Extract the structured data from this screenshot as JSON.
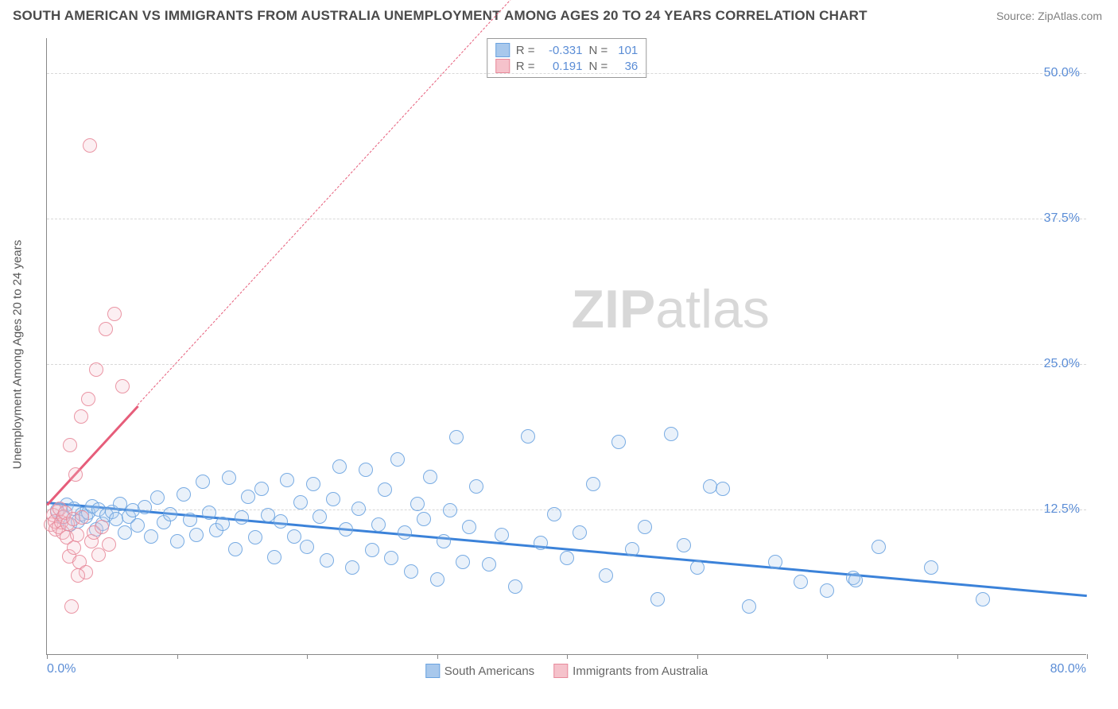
{
  "title": "SOUTH AMERICAN VS IMMIGRANTS FROM AUSTRALIA UNEMPLOYMENT AMONG AGES 20 TO 24 YEARS CORRELATION CHART",
  "source_label": "Source: ZipAtlas.com",
  "watermark_zip": "ZIP",
  "watermark_atlas": "atlas",
  "chart": {
    "type": "scatter",
    "background_color": "#ffffff",
    "grid_color": "#d8d8d8",
    "axis_color": "#888888",
    "ylabel": "Unemployment Among Ages 20 to 24 years",
    "ylabel_fontsize": 15,
    "ylabel_color": "#555555",
    "tick_label_color": "#5b8dd6",
    "tick_label_fontsize": 16,
    "xlim": [
      0,
      80
    ],
    "ylim": [
      0,
      53
    ],
    "ytick_positions": [
      12.5,
      25.0,
      37.5,
      50.0
    ],
    "ytick_labels": [
      "12.5%",
      "25.0%",
      "37.5%",
      "50.0%"
    ],
    "xtick_positions": [
      0,
      10,
      20,
      30,
      40,
      50,
      60,
      70,
      80
    ],
    "xtick_left_label": "0.0%",
    "xtick_right_label": "80.0%",
    "point_radius": 9,
    "point_opacity_fill": 0.28,
    "point_opacity_stroke": 0.9,
    "series": [
      {
        "name": "South Americans",
        "fill_color": "#a8c8ec",
        "stroke_color": "#6aa3e0",
        "r": -0.331,
        "n": 101,
        "trend_color": "#3b82d9",
        "trend_width": 2.5,
        "trend_start": [
          0,
          13.2
        ],
        "trend_end": [
          80,
          5.2
        ],
        "points": [
          [
            0.8,
            12.4
          ],
          [
            1.2,
            11.8
          ],
          [
            1.5,
            12.9
          ],
          [
            1.8,
            11.2
          ],
          [
            2.1,
            12.6
          ],
          [
            2.4,
            11.5
          ],
          [
            2.7,
            12.1
          ],
          [
            3.0,
            11.9
          ],
          [
            3.2,
            12.2
          ],
          [
            3.5,
            12.8
          ],
          [
            3.8,
            10.8
          ],
          [
            4.0,
            12.5
          ],
          [
            4.3,
            11.3
          ],
          [
            4.6,
            12.0
          ],
          [
            5.0,
            12.3
          ],
          [
            5.3,
            11.7
          ],
          [
            5.6,
            13.0
          ],
          [
            6.0,
            10.5
          ],
          [
            6.3,
            11.9
          ],
          [
            6.6,
            12.4
          ],
          [
            7.0,
            11.1
          ],
          [
            7.5,
            12.7
          ],
          [
            8.0,
            10.2
          ],
          [
            8.5,
            13.5
          ],
          [
            9.0,
            11.4
          ],
          [
            9.5,
            12.1
          ],
          [
            10.0,
            9.8
          ],
          [
            10.5,
            13.8
          ],
          [
            11.0,
            11.6
          ],
          [
            11.5,
            10.3
          ],
          [
            12.0,
            14.9
          ],
          [
            12.5,
            12.2
          ],
          [
            13.0,
            10.7
          ],
          [
            13.5,
            11.3
          ],
          [
            14.0,
            15.2
          ],
          [
            14.5,
            9.1
          ],
          [
            15.0,
            11.8
          ],
          [
            15.5,
            13.6
          ],
          [
            16.0,
            10.1
          ],
          [
            16.5,
            14.3
          ],
          [
            17.0,
            12.0
          ],
          [
            17.5,
            8.4
          ],
          [
            18.0,
            11.5
          ],
          [
            18.5,
            15.0
          ],
          [
            19.0,
            10.2
          ],
          [
            19.5,
            13.1
          ],
          [
            20.0,
            9.3
          ],
          [
            20.5,
            14.7
          ],
          [
            21.0,
            11.9
          ],
          [
            21.5,
            8.1
          ],
          [
            22.0,
            13.4
          ],
          [
            22.5,
            16.2
          ],
          [
            23.0,
            10.8
          ],
          [
            23.5,
            7.5
          ],
          [
            24.0,
            12.6
          ],
          [
            24.5,
            15.9
          ],
          [
            25.0,
            9.0
          ],
          [
            25.5,
            11.2
          ],
          [
            26.0,
            14.2
          ],
          [
            26.5,
            8.3
          ],
          [
            27.0,
            16.8
          ],
          [
            27.5,
            10.5
          ],
          [
            28.0,
            7.2
          ],
          [
            28.5,
            13.0
          ],
          [
            29.0,
            11.7
          ],
          [
            29.5,
            15.3
          ],
          [
            30.0,
            6.5
          ],
          [
            30.5,
            9.8
          ],
          [
            31.0,
            12.4
          ],
          [
            31.5,
            18.7
          ],
          [
            32.0,
            8.0
          ],
          [
            32.5,
            11.0
          ],
          [
            33.0,
            14.5
          ],
          [
            34.0,
            7.8
          ],
          [
            35.0,
            10.3
          ],
          [
            36.0,
            5.9
          ],
          [
            37.0,
            18.8
          ],
          [
            38.0,
            9.6
          ],
          [
            39.0,
            12.1
          ],
          [
            40.0,
            8.3
          ],
          [
            41.0,
            10.5
          ],
          [
            42.0,
            14.7
          ],
          [
            43.0,
            6.8
          ],
          [
            44.0,
            18.3
          ],
          [
            45.0,
            9.1
          ],
          [
            46.0,
            11.0
          ],
          [
            47.0,
            4.8
          ],
          [
            48.0,
            19.0
          ],
          [
            49.0,
            9.4
          ],
          [
            50.0,
            7.5
          ],
          [
            51.0,
            14.5
          ],
          [
            52.0,
            14.3
          ],
          [
            54.0,
            4.2
          ],
          [
            56.0,
            8.0
          ],
          [
            58.0,
            6.3
          ],
          [
            60.0,
            5.5
          ],
          [
            62.0,
            6.6
          ],
          [
            62.2,
            6.4
          ],
          [
            64.0,
            9.3
          ],
          [
            68.0,
            7.5
          ],
          [
            72.0,
            4.8
          ]
        ]
      },
      {
        "name": "Immigrants from Australia",
        "fill_color": "#f5c2cb",
        "stroke_color": "#e88a9b",
        "r": 0.191,
        "n": 36,
        "trend_color": "#e65d7a",
        "trend_width": 2.5,
        "trend_start": [
          0,
          13.0
        ],
        "trend_end": [
          7.0,
          21.5
        ],
        "trend_dash_start": [
          7.0,
          21.5
        ],
        "trend_dash_end": [
          36.0,
          56.7
        ],
        "points": [
          [
            0.3,
            11.2
          ],
          [
            0.5,
            12.0
          ],
          [
            0.6,
            11.5
          ],
          [
            0.7,
            10.8
          ],
          [
            0.8,
            12.3
          ],
          [
            0.9,
            11.0
          ],
          [
            1.0,
            12.6
          ],
          [
            1.1,
            11.4
          ],
          [
            1.2,
            10.5
          ],
          [
            1.3,
            11.9
          ],
          [
            1.4,
            12.2
          ],
          [
            1.5,
            10.1
          ],
          [
            1.6,
            11.3
          ],
          [
            1.7,
            8.5
          ],
          [
            1.8,
            18.0
          ],
          [
            2.0,
            11.7
          ],
          [
            2.1,
            9.2
          ],
          [
            2.2,
            15.5
          ],
          [
            2.3,
            10.3
          ],
          [
            2.5,
            8.0
          ],
          [
            2.6,
            20.5
          ],
          [
            2.7,
            11.8
          ],
          [
            3.0,
            7.1
          ],
          [
            3.2,
            22.0
          ],
          [
            3.4,
            9.8
          ],
          [
            3.6,
            10.5
          ],
          [
            3.8,
            24.5
          ],
          [
            4.0,
            8.6
          ],
          [
            4.2,
            11.0
          ],
          [
            4.5,
            28.0
          ],
          [
            4.8,
            9.5
          ],
          [
            5.2,
            29.3
          ],
          [
            5.8,
            23.1
          ],
          [
            1.9,
            4.2
          ],
          [
            2.4,
            6.8
          ],
          [
            3.3,
            43.8
          ]
        ]
      }
    ],
    "correlation_box": {
      "border_color": "#999999",
      "background_color": "#ffffff",
      "r_label": "R =",
      "n_label": "N ="
    },
    "legend_labels": [
      "South Americans",
      "Immigrants from Australia"
    ]
  }
}
